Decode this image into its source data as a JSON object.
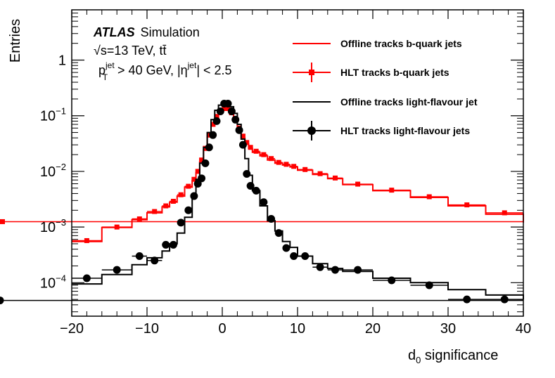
{
  "chart_data": {
    "type": "line",
    "ylabel": "Entries",
    "xlabel_main": "d",
    "xlabel_sub": "0",
    "xlabel_rest": " significance",
    "xlim": [
      -20,
      40
    ],
    "ylim": [
      2.5e-05,
      8
    ],
    "yscale": "log",
    "grid": false,
    "legend_position": "top-right",
    "x_ticks": [
      {
        "v": -20,
        "label": "−20"
      },
      {
        "v": -10,
        "label": "−10"
      },
      {
        "v": 0,
        "label": "0"
      },
      {
        "v": 10,
        "label": "10"
      },
      {
        "v": 20,
        "label": "20"
      },
      {
        "v": 30,
        "label": "30"
      },
      {
        "v": 40,
        "label": "40"
      }
    ],
    "y_ticks": [
      {
        "v": 0.0001,
        "base": "10",
        "exp": "−4"
      },
      {
        "v": 0.001,
        "base": "10",
        "exp": "−3"
      },
      {
        "v": 0.01,
        "base": "10",
        "exp": "−2"
      },
      {
        "v": 0.1,
        "base": "10",
        "exp": "−1"
      },
      {
        "v": 1,
        "base": "1",
        "exp": ""
      }
    ],
    "bin_edges": [
      -20,
      -16,
      -12,
      -10,
      -8,
      -7,
      -6,
      -5,
      -4,
      -3.5,
      -3,
      -2.5,
      -2,
      -1.5,
      -1,
      -0.5,
      0,
      0.5,
      1,
      1.5,
      2,
      2.5,
      3,
      3.5,
      4,
      5,
      6,
      7,
      8,
      9,
      10,
      12,
      14,
      16,
      20,
      25,
      30,
      35,
      40
    ],
    "series": [
      {
        "name": "Offline tracks b-quark jets",
        "style": "line",
        "color": "#ff0000",
        "values": [
          0.00055,
          0.00098,
          0.00135,
          0.0018,
          0.0023,
          0.0028,
          0.0036,
          0.0052,
          0.0068,
          0.0095,
          0.015,
          0.024,
          0.042,
          0.065,
          0.09,
          0.11,
          0.125,
          0.125,
          0.105,
          0.082,
          0.056,
          0.04,
          0.031,
          0.026,
          0.022,
          0.019,
          0.016,
          0.014,
          0.013,
          0.012,
          0.0105,
          0.0088,
          0.0074,
          0.0058,
          0.0045,
          0.0034,
          0.0024,
          0.0017,
          0.0012
        ]
      },
      {
        "name": "HLT tracks b-quark jets",
        "style": "markers",
        "marker": "square",
        "color": "#ff0000",
        "values": [
          0.00057,
          0.001,
          0.0014,
          0.0019,
          0.0024,
          0.0029,
          0.0038,
          0.0054,
          0.0072,
          0.01,
          0.016,
          0.026,
          0.045,
          0.07,
          0.097,
          0.12,
          0.135,
          0.135,
          0.113,
          0.088,
          0.06,
          0.043,
          0.033,
          0.027,
          0.023,
          0.02,
          0.017,
          0.0145,
          0.0134,
          0.0123,
          0.0108,
          0.0091,
          0.0076,
          0.0059,
          0.0046,
          0.0035,
          0.0025,
          0.0018,
          0.00125
        ]
      },
      {
        "name": "Offline tracks light-flavour jet",
        "style": "line",
        "color": "#000000",
        "values": [
          9.5e-05,
          0.00014,
          0.00021,
          0.00028,
          0.00037,
          0.0005,
          0.00078,
          0.0015,
          0.0035,
          0.0072,
          0.014,
          0.027,
          0.05,
          0.085,
          0.125,
          0.155,
          0.165,
          0.165,
          0.145,
          0.11,
          0.07,
          0.038,
          0.017,
          0.0085,
          0.0045,
          0.0024,
          0.0013,
          0.00085,
          0.00055,
          0.00043,
          0.0003,
          0.00022,
          0.00018,
          0.00016,
          0.00012,
          0.0001,
          7.5e-05,
          6e-05,
          5e-05
        ]
      },
      {
        "name": "HLT tracks light-flavour jets",
        "style": "markers",
        "marker": "circle",
        "color": "#000000",
        "values": [
          0.00012,
          0.00017,
          0.0003,
          0.00025,
          0.00048,
          0.00048,
          0.0012,
          0.002,
          0.0036,
          0.006,
          0.0075,
          0.014,
          0.027,
          0.045,
          0.08,
          0.12,
          0.165,
          0.165,
          0.12,
          0.085,
          0.055,
          0.03,
          0.009,
          0.0055,
          0.0045,
          0.0028,
          0.0014,
          0.00078,
          0.00042,
          0.0003,
          0.0003,
          0.00019,
          0.00017,
          0.00017,
          0.00011,
          9e-05,
          5e-05,
          5e-05,
          4.8e-05
        ]
      }
    ],
    "annotations": {
      "atlas": "ATLAS",
      "simulation": "Simulation",
      "sqrt_s": "√s=13 TeV, tt̄",
      "pt_cut_p": "p",
      "pt_cut_sup": "jet",
      "pt_cut_sub": "T",
      "pt_cut_rest": " > 40 GeV, |η",
      "pt_cut_sup2": "jet",
      "pt_cut_end": "| < 2.5"
    }
  }
}
